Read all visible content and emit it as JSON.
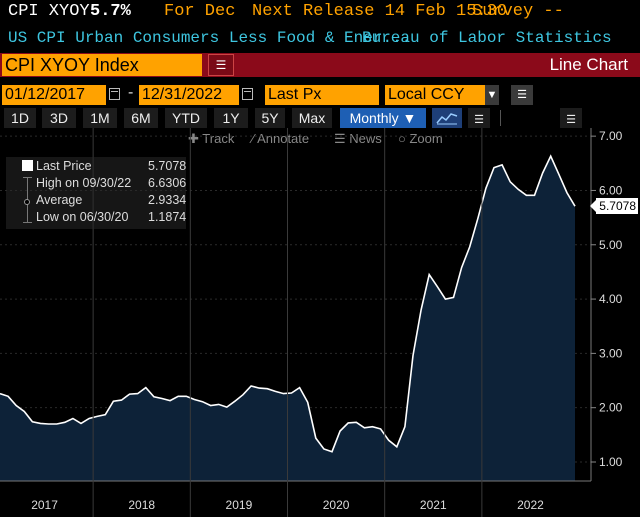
{
  "header": {
    "ticker": "CPI XYOY",
    "value": "5.7%",
    "for_label": "For Dec",
    "next_release": "Next Release 14 Feb 15:30",
    "survey": "Survey --",
    "description": "US CPI Urban Consumers Less Food & Ener...",
    "source": "Bureau of Labor Statistics"
  },
  "security": {
    "name": "CPI XYOY Index",
    "chart_type": "Line Chart"
  },
  "controls": {
    "start_date": "01/12/2017",
    "end_date": "12/31/2022",
    "field": "Last Px",
    "currency": "Local CCY",
    "ranges": [
      "1D",
      "3D",
      "1M",
      "6M",
      "YTD",
      "1Y",
      "5Y",
      "Max"
    ],
    "frequency": "Monthly ▼",
    "tools": [
      "Track",
      "Annotate",
      "News",
      "Zoom"
    ]
  },
  "legend": {
    "last_label": "Last Price",
    "last_value": "5.7078",
    "high_label": "High on 09/30/22",
    "high_value": "6.6306",
    "avg_label": "Average",
    "avg_value": "2.9334",
    "low_label": "Low on 06/30/20",
    "low_value": "1.1874"
  },
  "colors": {
    "orange": "#ffa200",
    "cyan": "#3ec6e0",
    "bar_red": "#8b0a1a",
    "area_fill": "#0d2238",
    "line": "#ffffff",
    "active_btn": "#1e5fb4"
  },
  "chart_data": {
    "type": "area",
    "ylim": [
      0.65,
      7.15
    ],
    "yticks": [
      "1.00",
      "2.00",
      "3.00",
      "4.00",
      "5.00",
      "6.00",
      "7.00"
    ],
    "ytick_values": [
      1,
      2,
      3,
      4,
      5,
      6,
      7
    ],
    "xlabels": [
      "2017",
      "2018",
      "2019",
      "2020",
      "2021",
      "2022"
    ],
    "last_value_label": "5.7078",
    "series": [
      {
        "x": [
          "2017-01",
          "2017-02",
          "2017-03",
          "2017-04",
          "2017-05",
          "2017-06",
          "2017-07",
          "2017-08",
          "2017-09",
          "2017-10",
          "2017-11",
          "2017-12",
          "2018-01",
          "2018-02",
          "2018-03",
          "2018-04",
          "2018-05",
          "2018-06",
          "2018-07",
          "2018-08",
          "2018-09",
          "2018-10",
          "2018-11",
          "2018-12",
          "2019-01",
          "2019-02",
          "2019-03",
          "2019-04",
          "2019-05",
          "2019-06",
          "2019-07",
          "2019-08",
          "2019-09",
          "2019-10",
          "2019-11",
          "2019-12",
          "2020-01",
          "2020-02",
          "2020-03",
          "2020-04",
          "2020-05",
          "2020-06",
          "2020-07",
          "2020-08",
          "2020-09",
          "2020-10",
          "2020-11",
          "2020-12",
          "2021-01",
          "2021-02",
          "2021-03",
          "2021-04",
          "2021-05",
          "2021-06",
          "2021-07",
          "2021-08",
          "2021-09",
          "2021-10",
          "2021-11",
          "2021-12",
          "2022-01",
          "2022-02",
          "2022-03",
          "2022-04",
          "2022-05",
          "2022-06",
          "2022-07",
          "2022-08",
          "2022-09",
          "2022-10",
          "2022-11",
          "2022-12"
        ],
        "y": [
          2.26,
          2.21,
          2.04,
          1.93,
          1.74,
          1.71,
          1.7,
          1.7,
          1.73,
          1.8,
          1.71,
          1.8,
          1.84,
          1.87,
          2.12,
          2.14,
          2.25,
          2.26,
          2.37,
          2.2,
          2.17,
          2.13,
          2.21,
          2.21,
          2.15,
          2.11,
          2.04,
          2.06,
          2.01,
          2.12,
          2.24,
          2.4,
          2.36,
          2.35,
          2.3,
          2.26,
          2.27,
          2.37,
          2.1,
          1.44,
          1.24,
          1.19,
          1.57,
          1.72,
          1.73,
          1.63,
          1.65,
          1.61,
          1.4,
          1.28,
          1.65,
          2.96,
          3.8,
          4.45,
          4.23,
          4.0,
          4.03,
          4.58,
          4.96,
          5.48,
          6.04,
          6.42,
          6.47,
          6.16,
          6.02,
          5.91,
          5.91,
          6.32,
          6.63,
          6.3,
          5.96,
          5.71
        ]
      }
    ]
  }
}
